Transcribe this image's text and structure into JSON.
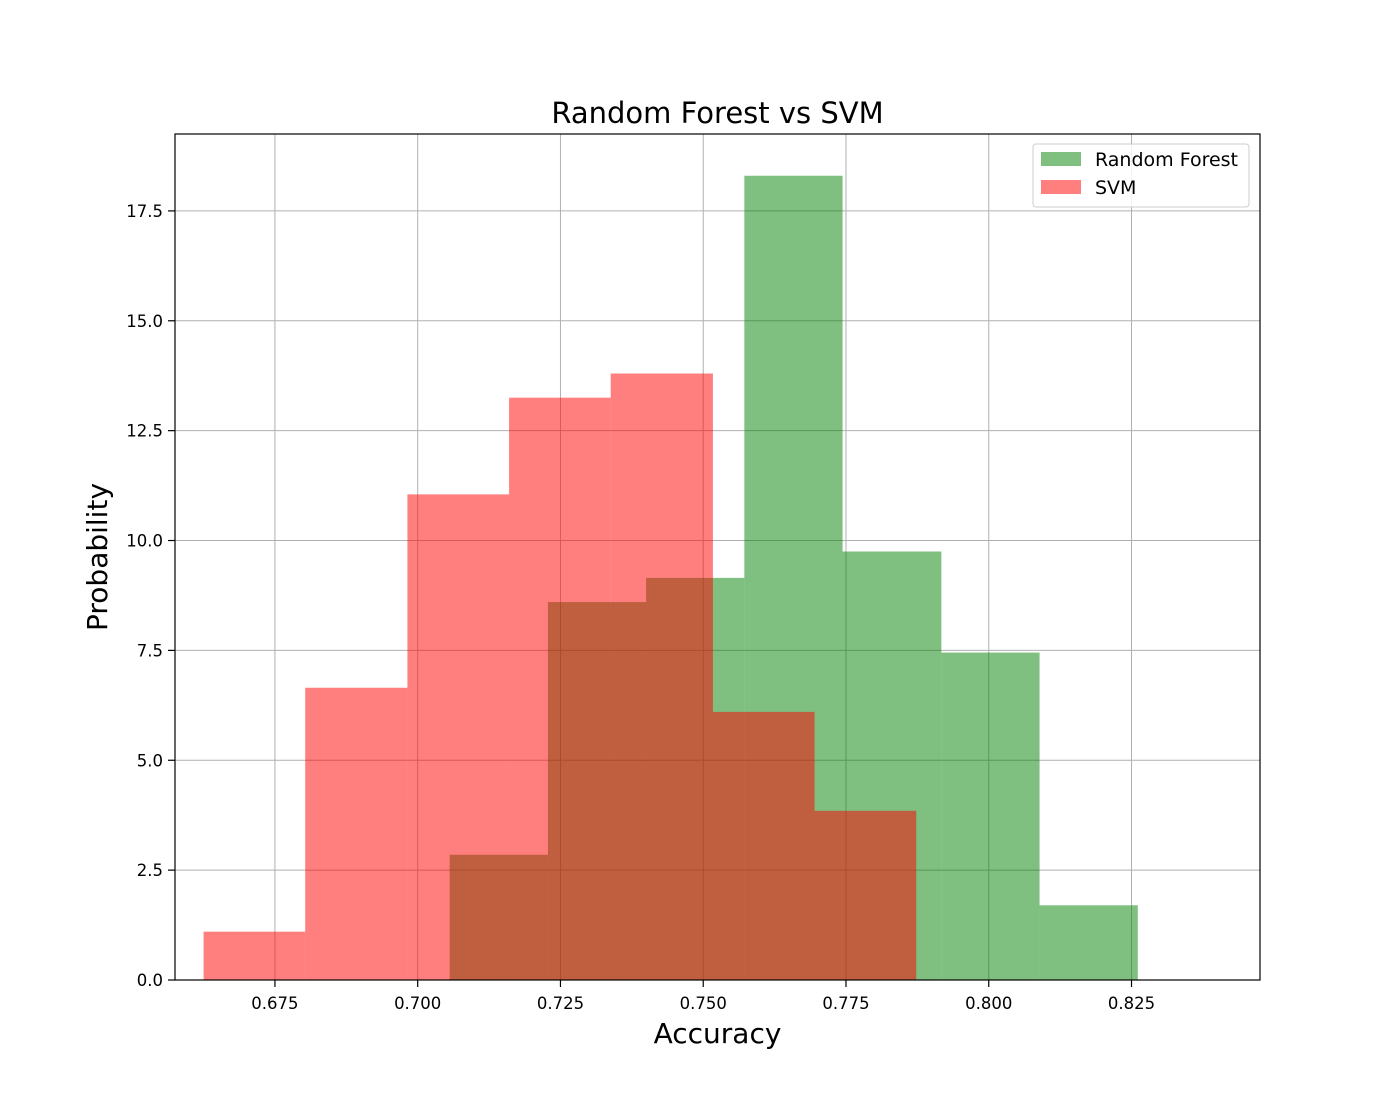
{
  "chart_data": {
    "type": "histogram",
    "title": "Random Forest vs SVM",
    "xlabel": "Accuracy",
    "ylabel": "Probability",
    "xlim": [
      0.6575,
      0.8475
    ],
    "ylim": [
      0,
      19.25
    ],
    "xticks": [
      0.675,
      0.7,
      0.725,
      0.75,
      0.775,
      0.8,
      0.825
    ],
    "xtick_labels": [
      "0.675",
      "0.700",
      "0.725",
      "0.750",
      "0.775",
      "0.800",
      "0.825"
    ],
    "yticks": [
      0.0,
      2.5,
      5.0,
      7.5,
      10.0,
      12.5,
      15.0,
      17.5
    ],
    "ytick_labels": [
      "0.0",
      "2.5",
      "5.0",
      "7.5",
      "10.0",
      "12.5",
      "15.0",
      "17.5"
    ],
    "grid": true,
    "legend": {
      "placement": "top-right"
    },
    "series": [
      {
        "name": "Random Forest",
        "color": "#008000",
        "alpha": 0.5,
        "bins": [
          {
            "x0": 0.7056,
            "x1": 0.7228,
            "value": 2.85
          },
          {
            "x0": 0.7228,
            "x1": 0.74,
            "value": 8.6
          },
          {
            "x0": 0.74,
            "x1": 0.7572,
            "value": 9.15
          },
          {
            "x0": 0.7572,
            "x1": 0.7744,
            "value": 18.3
          },
          {
            "x0": 0.7744,
            "x1": 0.7917,
            "value": 9.75
          },
          {
            "x0": 0.7917,
            "x1": 0.8089,
            "value": 7.45
          },
          {
            "x0": 0.8089,
            "x1": 0.8261,
            "value": 1.7
          }
        ]
      },
      {
        "name": "SVM",
        "color": "#ff0000",
        "alpha": 0.5,
        "bins": [
          {
            "x0": 0.6625,
            "x1": 0.6803,
            "value": 1.1
          },
          {
            "x0": 0.6803,
            "x1": 0.6982,
            "value": 6.65
          },
          {
            "x0": 0.6982,
            "x1": 0.716,
            "value": 11.05
          },
          {
            "x0": 0.716,
            "x1": 0.7338,
            "value": 13.25
          },
          {
            "x0": 0.7338,
            "x1": 0.7517,
            "value": 13.8
          },
          {
            "x0": 0.7517,
            "x1": 0.7695,
            "value": 6.1
          },
          {
            "x0": 0.7695,
            "x1": 0.7873,
            "value": 3.85
          }
        ]
      }
    ]
  }
}
